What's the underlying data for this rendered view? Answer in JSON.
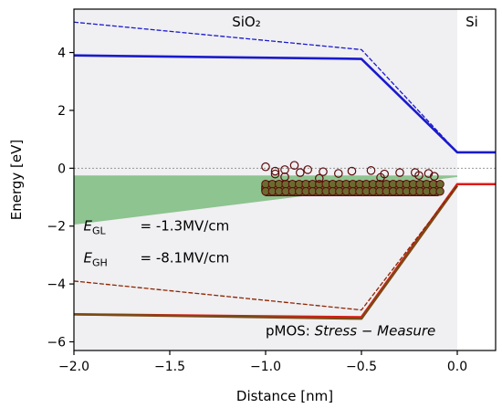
{
  "chart_data": {
    "type": "line",
    "xlabel": "Distance  [nm]",
    "ylabel": "Energy  [eV]",
    "xlim": [
      -2.0,
      0.2
    ],
    "ylim": [
      -6.3,
      5.5
    ],
    "xticks": [
      -2.0,
      -1.5,
      -1.0,
      -0.5,
      0.0
    ],
    "xtick_labels": [
      "−2.0",
      "−1.5",
      "−1.0",
      "−0.5",
      "0.0"
    ],
    "yticks": [
      4,
      2,
      0,
      -2,
      -4,
      -6
    ],
    "ytick_labels": [
      "4",
      "2",
      "0",
      "−2",
      "−4",
      "−6"
    ],
    "regions": [
      {
        "label": "SiO₂",
        "x_range": [
          -2.0,
          0.0
        ],
        "color": "#f0eff2"
      },
      {
        "label": "Si",
        "x_range": [
          0.0,
          0.2
        ],
        "color": "#ffffff"
      }
    ],
    "series": [
      {
        "style": "solid",
        "color": "#1a1acc",
        "x": [
          -2.0,
          -0.5,
          0.0,
          0.2
        ],
        "y": [
          3.9,
          3.78,
          0.55,
          0.55
        ]
      },
      {
        "style": "dashed",
        "color": "#1a1acc",
        "x": [
          -2.0,
          -0.5,
          0.0
        ],
        "y": [
          5.05,
          4.1,
          0.55
        ]
      },
      {
        "style": "solid",
        "color": "#e01919",
        "x": [
          -2.0,
          -0.5,
          0.0,
          0.2
        ],
        "y": [
          -5.05,
          -5.15,
          -0.55,
          -0.55
        ]
      },
      {
        "style": "solid",
        "color": "#7a4a14",
        "x": [
          -2.0,
          -0.5,
          0.0
        ],
        "y": [
          -5.05,
          -5.2,
          -0.6
        ]
      },
      {
        "style": "dashed",
        "color": "#8b2500",
        "x": [
          -2.0,
          -0.5,
          0.0
        ],
        "y": [
          -3.9,
          -4.9,
          -0.6
        ]
      },
      {
        "style": "dotted",
        "color": "#888888",
        "x": [
          -2.0,
          0.2
        ],
        "y": [
          0,
          0
        ]
      }
    ],
    "band": {
      "color": "#8dc48f",
      "polygon": [
        [
          -2.0,
          -0.25
        ],
        [
          0.0,
          -0.25
        ],
        [
          0.0,
          -0.3
        ],
        [
          -2.0,
          -1.95
        ]
      ]
    },
    "defects": {
      "edge_color": "#5c0a0a",
      "fill_color": "#6b6b30",
      "points": [
        [
          -1.0,
          0.05
        ],
        [
          -0.95,
          -0.1
        ],
        [
          -0.9,
          -0.05
        ],
        [
          -0.85,
          0.1
        ],
        [
          -0.82,
          -0.15
        ],
        [
          -0.78,
          -0.05
        ],
        [
          -0.7,
          -0.12
        ],
        [
          -0.62,
          -0.18
        ],
        [
          -0.55,
          -0.1
        ],
        [
          -0.45,
          -0.08
        ],
        [
          -0.38,
          -0.2
        ],
        [
          -0.3,
          -0.15
        ],
        [
          -0.22,
          -0.15
        ],
        [
          -0.15,
          -0.18
        ],
        [
          -0.12,
          -0.28
        ],
        [
          -0.2,
          -0.25
        ],
        [
          -0.72,
          -0.35
        ],
        [
          -0.9,
          -0.3
        ],
        [
          -0.95,
          -0.2
        ],
        [
          -0.4,
          -0.32
        ]
      ],
      "band_x": [
        -1.02,
        -0.08
      ],
      "band_y": [
        -0.45,
        -0.95
      ]
    },
    "annotations": [
      {
        "label": "E",
        "sub": "GL",
        "value": "= -1.3MV/cm",
        "x": -1.95,
        "y": -2.15
      },
      {
        "label": "E",
        "sub": "GH",
        "value": "= -8.1MV/cm",
        "x": -1.95,
        "y": -3.25
      }
    ],
    "caption": {
      "prefix": "pMOS: ",
      "italic": "Stress − Measure",
      "x": -1.0,
      "y": -5.78
    }
  }
}
